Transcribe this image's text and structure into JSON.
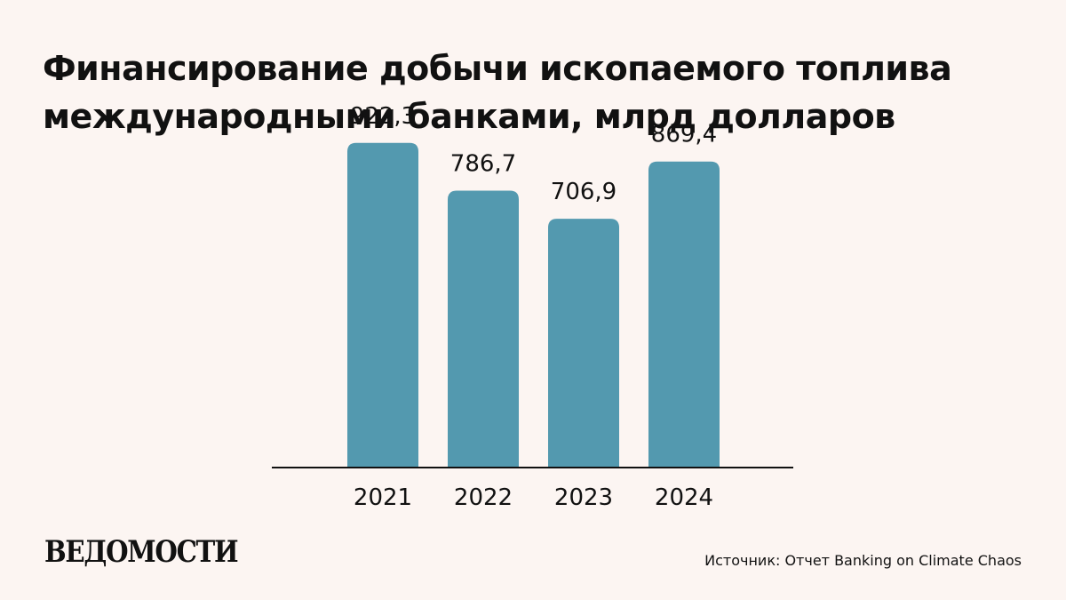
{
  "title": "Финансирование добычи ископаемого топлива международными банками, млрд долларов",
  "colors": {
    "background": "#fcf5f2",
    "bar": "#5399af",
    "text": "#111111"
  },
  "chart_data": {
    "type": "bar",
    "title": "Финансирование добычи ископаемого топлива международными банками, млрд долларов",
    "categories": [
      "2021",
      "2022",
      "2023",
      "2024"
    ],
    "values": [
      922.3,
      786.7,
      706.9,
      869.4
    ],
    "value_labels": [
      "922,3",
      "786,7",
      "706,9",
      "869,4"
    ],
    "xlabel": "",
    "ylabel": "",
    "ylim": [
      0,
      1000
    ],
    "grid": false,
    "legend": "none"
  },
  "footer": {
    "logo_text": "ВЕДОМОСТИ",
    "source": "Источник: Отчет Banking on Climate Chaos"
  }
}
